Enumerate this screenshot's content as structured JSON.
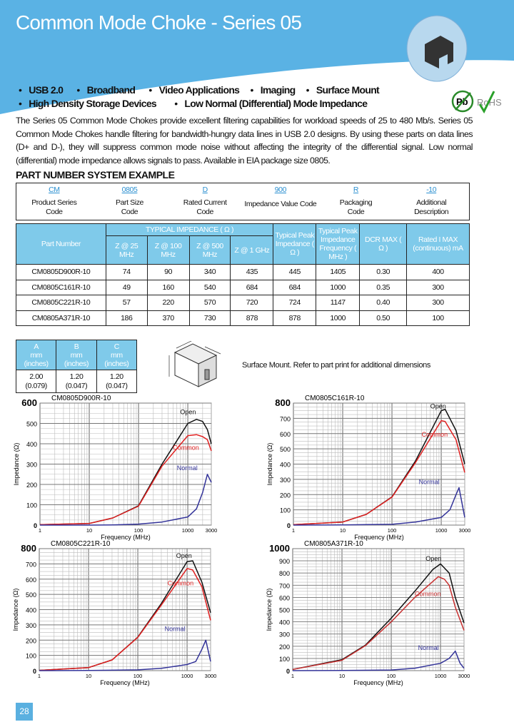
{
  "header": {
    "title": "Common Mode Choke - Series 05",
    "brand_color": "#5ab2e4"
  },
  "features": {
    "line1": [
      "USB 2.0",
      "Broadband",
      "Video Applications",
      "Imaging",
      "Surface Mount"
    ],
    "line2": [
      "High Density Storage Devices",
      "Low Normal (Differential) Mode Impedance"
    ]
  },
  "badges": {
    "pb": "Pb",
    "rohs": "RoHS"
  },
  "description": "The Series 05 Common Mode Chokes provide excellent filtering capabilities for workload speeds of 25 to 480 Mb/s.   Series 05 Common Mode Chokes handle filtering for bandwidth-hungry data lines in USB 2.0 designs.  By using these parts on data lines (D+ and D-), they will suppress common mode noise without affecting the integrity of the differential signal.  Low normal (differential) mode impedance allows signals to pass.  Available in EIA package size 0805.",
  "part_number_system": {
    "heading": "PART NUMBER SYSTEM EXAMPLE",
    "fields": [
      {
        "code": "CM",
        "l1": "Product Series",
        "l2": "Code"
      },
      {
        "code": "0805",
        "l1": "Part Size",
        "l2": "Code"
      },
      {
        "code": "D",
        "l1": "Rated Current",
        "l2": "Code"
      },
      {
        "code": "900",
        "l1": "Impedance Value Code",
        "l2": ""
      },
      {
        "code": "R",
        "l1": "Packaging",
        "l2": "Code"
      },
      {
        "code": "-10",
        "l1": "Additional",
        "l2": "Description"
      }
    ]
  },
  "spec_table": {
    "part_header": "Part Number",
    "group_header": "TYPICAL IMPEDANCE ( Ω )",
    "z_headers": [
      "Z @ 25 MHz",
      "Z @ 100 MHz",
      "Z @ 500 MHz",
      "Z @ 1 GHz"
    ],
    "peak_header": "Typical Peak Impedance ( Ω )",
    "freq_header": "Typical Peak Impedance Frequency ( MHz )",
    "dcr_header": "DCR MAX ( Ω )",
    "imax_header": "Rated I MAX (continuous) mA",
    "rows": [
      [
        "CM0805D900R-10",
        "74",
        "90",
        "340",
        "435",
        "445",
        "1405",
        "0.30",
        "400"
      ],
      [
        "CM0805C161R-10",
        "49",
        "160",
        "540",
        "684",
        "684",
        "1000",
        "0.35",
        "300"
      ],
      [
        "CM0805C221R-10",
        "57",
        "220",
        "570",
        "720",
        "724",
        "1147",
        "0.40",
        "300"
      ],
      [
        "CM0805A371R-10",
        "186",
        "370",
        "730",
        "878",
        "878",
        "1000",
        "0.50",
        "100"
      ]
    ]
  },
  "dimensions": {
    "headers": [
      [
        "A",
        "mm",
        "(inches)"
      ],
      [
        "B",
        "mm",
        "(inches)"
      ],
      [
        "C",
        "mm",
        "(inches)"
      ]
    ],
    "values": [
      [
        "2.00",
        "(0.079)"
      ],
      [
        "1.20",
        "(0.047)"
      ],
      [
        "1.20",
        "(0.047)"
      ]
    ],
    "note": "Surface Mount.  Refer to part print for additional dimensions"
  },
  "chart_data": [
    {
      "type": "line",
      "title": "CM0805D900R-10",
      "xlabel": "Frequency (MHz)",
      "ylabel": "Impedance (Ω)",
      "xscale": "log",
      "xlim": [
        1,
        3000
      ],
      "ylim": [
        0,
        600
      ],
      "yticks": [
        0,
        100,
        200,
        300,
        400,
        500,
        600
      ],
      "xticks": [
        1,
        10,
        100,
        1000,
        3000
      ],
      "grid": true,
      "series": [
        {
          "name": "Open",
          "color": "#111111",
          "x": [
            1,
            10,
            30,
            100,
            300,
            1000,
            1500,
            2000,
            2500,
            3000
          ],
          "y": [
            2,
            8,
            35,
            95,
            300,
            500,
            520,
            510,
            470,
            400
          ]
        },
        {
          "name": "Common",
          "color": "#e02020",
          "x": [
            1,
            10,
            30,
            100,
            300,
            1000,
            1500,
            2000,
            2500,
            3000
          ],
          "y": [
            2,
            8,
            35,
            93,
            290,
            440,
            445,
            435,
            420,
            365
          ]
        },
        {
          "name": "Normal",
          "color": "#333399",
          "x": [
            1,
            10,
            30,
            100,
            300,
            1000,
            1500,
            2000,
            2500,
            3000
          ],
          "y": [
            0,
            0,
            1,
            5,
            15,
            40,
            80,
            160,
            250,
            210
          ]
        }
      ]
    },
    {
      "type": "line",
      "title": "CM0805C161R-10",
      "xlabel": "Frequency (MHz)",
      "ylabel": "Impedance (Ω)",
      "xscale": "log",
      "xlim": [
        1,
        3000
      ],
      "ylim": [
        0,
        800
      ],
      "yticks": [
        0,
        100,
        200,
        300,
        400,
        500,
        600,
        700,
        800
      ],
      "xticks": [
        1,
        10,
        100,
        1000,
        3000
      ],
      "grid": true,
      "series": [
        {
          "name": "Open",
          "color": "#111111",
          "x": [
            1,
            10,
            30,
            100,
            300,
            1000,
            1200,
            2000,
            3000
          ],
          "y": [
            3,
            20,
            70,
            185,
            420,
            750,
            760,
            620,
            400
          ]
        },
        {
          "name": "Common",
          "color": "#e02020",
          "x": [
            1,
            10,
            30,
            100,
            300,
            1000,
            1200,
            2000,
            3000
          ],
          "y": [
            3,
            20,
            70,
            183,
            410,
            685,
            680,
            560,
            345
          ]
        },
        {
          "name": "Normal",
          "color": "#333399",
          "x": [
            1,
            10,
            100,
            300,
            1000,
            1500,
            2000,
            2300,
            3000
          ],
          "y": [
            0,
            1,
            5,
            20,
            50,
            100,
            200,
            245,
            50
          ]
        }
      ]
    },
    {
      "type": "line",
      "title": "CM0805C221R-10",
      "xlabel": "Frequency (MHz)",
      "ylabel": "Impedance (Ω)",
      "xscale": "log",
      "xlim": [
        1,
        3000
      ],
      "ylim": [
        0,
        800
      ],
      "yticks": [
        0,
        100,
        200,
        300,
        400,
        500,
        600,
        700,
        800
      ],
      "xticks": [
        1,
        10,
        100,
        1000,
        3000
      ],
      "grid": true,
      "series": [
        {
          "name": "Open",
          "color": "#111111",
          "x": [
            1,
            10,
            30,
            100,
            300,
            1000,
            1300,
            2000,
            3000
          ],
          "y": [
            2,
            20,
            70,
            220,
            440,
            715,
            720,
            580,
            380
          ]
        },
        {
          "name": "Common",
          "color": "#e02020",
          "x": [
            1,
            10,
            30,
            100,
            300,
            1000,
            1300,
            2000,
            3000
          ],
          "y": [
            2,
            20,
            70,
            218,
            430,
            670,
            660,
            550,
            330
          ]
        },
        {
          "name": "Normal",
          "color": "#333399",
          "x": [
            1,
            10,
            100,
            300,
            1000,
            1500,
            2000,
            2400,
            3000
          ],
          "y": [
            0,
            1,
            5,
            15,
            40,
            60,
            140,
            200,
            60
          ]
        }
      ]
    },
    {
      "type": "line",
      "title": "CM0805A371R-10",
      "xlabel": "Frequency (MHz)",
      "ylabel": "Impedance (Ω)",
      "xscale": "log",
      "xlim": [
        1,
        3000
      ],
      "ylim": [
        0,
        1000
      ],
      "yticks": [
        0,
        100,
        200,
        300,
        400,
        500,
        600,
        700,
        800,
        900,
        1000
      ],
      "xticks": [
        1,
        10,
        100,
        1000,
        3000
      ],
      "grid": true,
      "series": [
        {
          "name": "Open",
          "color": "#111111",
          "x": [
            1,
            10,
            30,
            100,
            300,
            700,
            1000,
            1500,
            2000,
            3000
          ],
          "y": [
            10,
            90,
            210,
            430,
            650,
            830,
            875,
            800,
            600,
            390
          ]
        },
        {
          "name": "Common",
          "color": "#c83030",
          "x": [
            1,
            10,
            30,
            100,
            300,
            900,
            1200,
            1500,
            2000,
            3000
          ],
          "y": [
            10,
            85,
            205,
            400,
            600,
            770,
            750,
            700,
            520,
            330
          ]
        },
        {
          "name": "Normal",
          "color": "#333399",
          "x": [
            1,
            10,
            100,
            300,
            1000,
            1500,
            2000,
            2500,
            3000
          ],
          "y": [
            0,
            1,
            5,
            20,
            60,
            100,
            160,
            60,
            20
          ]
        }
      ]
    }
  ],
  "footer": {
    "page_number": "28"
  }
}
